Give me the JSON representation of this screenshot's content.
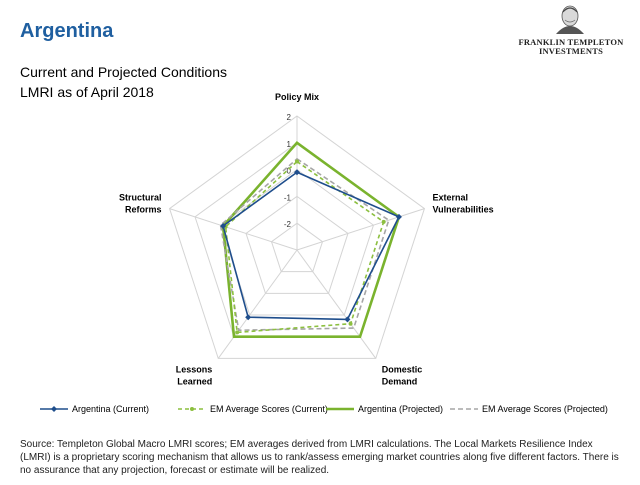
{
  "page": {
    "title": "Argentina",
    "logo_line1": "FRANKLIN TEMPLETON",
    "logo_line2": "INVESTMENTS",
    "subtitle1": "Current and Projected Conditions",
    "subtitle2": "LMRI as of April 2018",
    "source": "Source: Templeton Global Macro LMRI scores; EM averages derived from LMRI calculations. The Local Markets Resilience Index (LMRI) is a proprietary scoring mechanism that allows us to rank/assess emerging market countries along five different factors. There is no assurance that any projection, forecast or estimate will be realized."
  },
  "chart_data": {
    "type": "radar",
    "axes": [
      "Policy Mix",
      "External Vulnerabilities",
      "Domestic Demand",
      "Lessons Learned",
      "Structural Reforms"
    ],
    "axis_label_lines": [
      [
        "Policy Mix"
      ],
      [
        "External",
        "Vulnerabilities"
      ],
      [
        "Domestic",
        "Demand"
      ],
      [
        "Lessons",
        "Learned"
      ],
      [
        "Structural",
        "Reforms"
      ]
    ],
    "range": [
      -3,
      2
    ],
    "ticks": [
      -2,
      -1,
      0,
      1,
      2
    ],
    "tick_labels": [
      "-2",
      "-1",
      "0",
      "1",
      "2"
    ],
    "grid": true,
    "legend_position": "bottom",
    "series": [
      {
        "name": "Argentina (Current)",
        "values": [
          -0.1,
          1.0,
          0.2,
          0.1,
          -0.1
        ],
        "color": "#1f4e8c",
        "style": "solid-marker"
      },
      {
        "name": "EM Average Scores (Current)",
        "values": [
          0.3,
          0.4,
          0.4,
          0.8,
          -0.2
        ],
        "color": "#8cbf3f",
        "style": "dashed-marker"
      },
      {
        "name": "Argentina (Projected)",
        "values": [
          1.0,
          1.0,
          1.0,
          1.0,
          -0.1
        ],
        "color": "#7ab32e",
        "style": "solid"
      },
      {
        "name": "EM Average Scores (Projected)",
        "values": [
          0.4,
          0.6,
          0.6,
          0.7,
          0.0
        ],
        "color": "#a6a6a6",
        "style": "dashed"
      }
    ]
  }
}
